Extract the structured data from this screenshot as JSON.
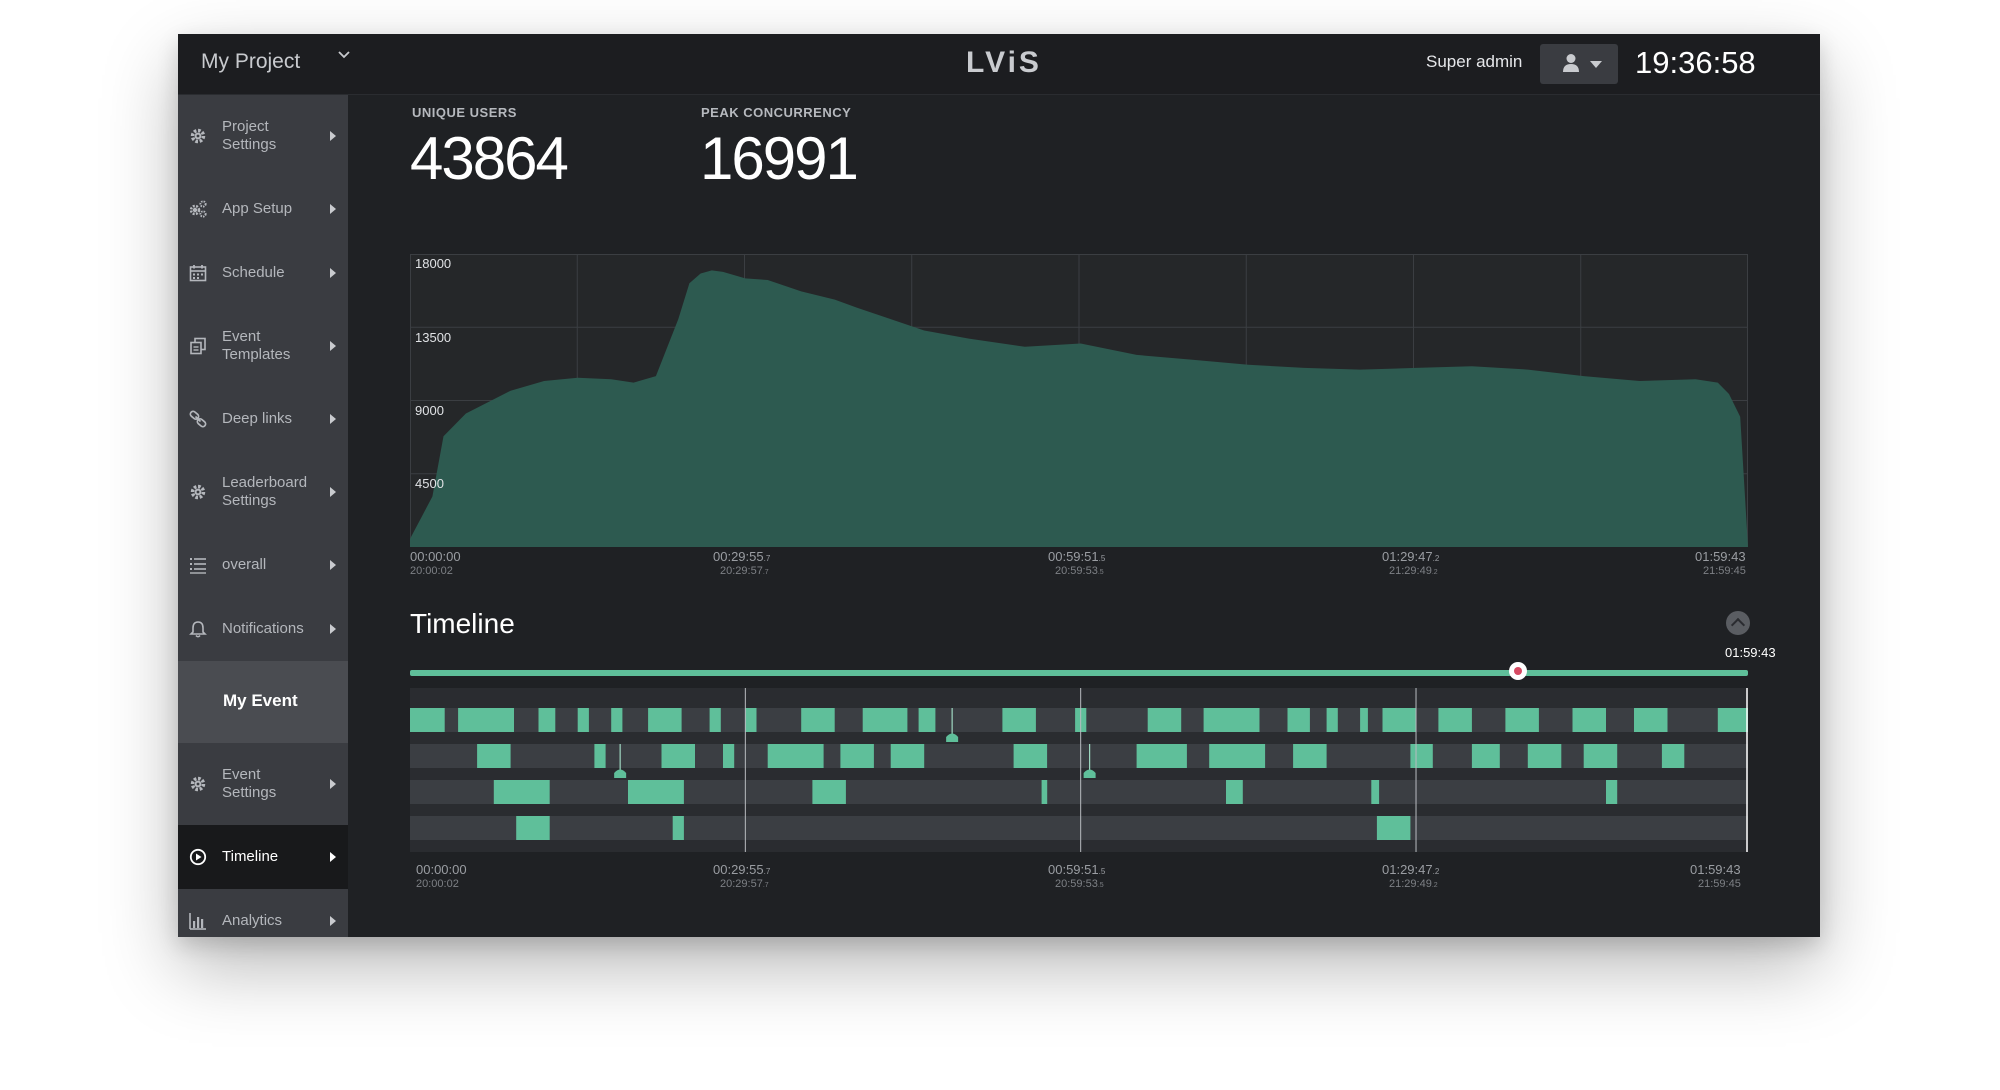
{
  "header": {
    "project": "My Project",
    "logo": "LViS",
    "user_label": "Super admin",
    "clock": "19:36:58",
    "icons": {
      "project_dropdown": "chevron-down-icon",
      "user": "user-icon",
      "user_dropdown": "caret-down-icon"
    }
  },
  "sidebar": {
    "items_top": [
      {
        "label": "Project Settings",
        "icon": "gear-icon"
      },
      {
        "label": "App Setup",
        "icon": "gears-icon"
      },
      {
        "label": "Schedule",
        "icon": "calendar-icon"
      },
      {
        "label": "Event Templates",
        "icon": "templates-icon"
      },
      {
        "label": "Deep links",
        "icon": "link-icon"
      },
      {
        "label": "Leaderboard Settings",
        "icon": "gear-icon"
      },
      {
        "label": "overall",
        "icon": "list-icon"
      },
      {
        "label": "Notifications",
        "icon": "bell-icon"
      }
    ],
    "section": "My Event",
    "items_event": [
      {
        "label": "Event Settings",
        "icon": "gear-icon"
      },
      {
        "label": "Timeline",
        "icon": "play-circle-icon",
        "active": true
      },
      {
        "label": "Analytics",
        "icon": "bar-chart-icon"
      }
    ]
  },
  "stats": {
    "unique_users_label": "UNIQUE USERS",
    "unique_users": "43864",
    "peak_label": "PEAK CONCURRENCY",
    "peak": "16991"
  },
  "chart_data": {
    "type": "area",
    "title": "",
    "xlabel": "",
    "ylabel": "",
    "ylim": [
      0,
      18000
    ],
    "yticks": [
      "18000",
      "13500",
      "9000",
      "4500"
    ],
    "xtick_labels": [
      {
        "main": "00:00:00",
        "main_frac": "",
        "sub": "20:00:02",
        "sub_frac": ""
      },
      {
        "main": "00:29:55",
        "main_frac": ".7",
        "sub": "20:29:57",
        "sub_frac": ".7"
      },
      {
        "main": "00:59:51",
        "main_frac": ".5",
        "sub": "20:59:53",
        "sub_frac": ".5"
      },
      {
        "main": "01:29:47",
        "main_frac": ".2",
        "sub": "21:29:49",
        "sub_frac": ".2"
      },
      {
        "main": "01:59:43",
        "main_frac": "",
        "sub": "21:59:45",
        "sub_frac": ""
      }
    ],
    "grid": true,
    "color": "#2d5a50",
    "x_minutes": [
      0,
      1,
      2,
      3,
      5,
      7,
      9,
      12,
      15,
      18,
      20,
      22,
      24,
      25,
      26,
      27,
      28,
      30,
      32,
      35,
      38,
      40,
      43,
      46,
      50,
      55,
      60,
      65,
      70,
      75,
      80,
      85,
      90,
      95,
      100,
      105,
      110,
      115,
      117,
      118,
      119,
      119.7
    ],
    "values": [
      500,
      1800,
      3100,
      6800,
      8200,
      8900,
      9600,
      10200,
      10400,
      10300,
      10100,
      10500,
      14000,
      16200,
      16800,
      16991,
      16900,
      16500,
      16400,
      15700,
      15200,
      14700,
      14000,
      13300,
      12800,
      12300,
      12500,
      11800,
      11500,
      11200,
      11000,
      10900,
      11000,
      11100,
      10900,
      10500,
      10200,
      10300,
      10100,
      9400,
      8000,
      0
    ]
  },
  "timeline": {
    "title": "Timeline",
    "marker_time": "01:59:43",
    "collapse_icon": "chevron-up-icon",
    "bar_color": "#5fbf9a",
    "duration_minutes": 119.7,
    "minute_lines": [
      30,
      60,
      90
    ],
    "rows": [
      [
        [
          0,
          3.1
        ],
        [
          4.3,
          9.3
        ],
        [
          11.5,
          13
        ],
        [
          15,
          16
        ],
        [
          18,
          19
        ],
        [
          21.3,
          24.3
        ],
        [
          26.8,
          27.8
        ],
        [
          30,
          31
        ],
        [
          35,
          38
        ],
        [
          40.5,
          44.5
        ],
        [
          45.5,
          47
        ],
        [
          53,
          56
        ],
        [
          59.5,
          60.5
        ],
        [
          66,
          69
        ],
        [
          71,
          76
        ],
        [
          78.5,
          80.5
        ],
        [
          82,
          83
        ],
        [
          85,
          85.7
        ],
        [
          87,
          90
        ],
        [
          92,
          95
        ],
        [
          98,
          101
        ],
        [
          104,
          107
        ],
        [
          109.5,
          112.5
        ],
        [
          117,
          119.7
        ]
      ],
      [
        [
          6,
          9
        ],
        [
          16.5,
          17.5
        ],
        [
          22.5,
          25.5
        ],
        [
          28,
          29
        ],
        [
          32,
          37
        ],
        [
          38.5,
          41.5
        ],
        [
          43,
          46
        ],
        [
          54,
          57
        ],
        [
          65,
          69.5
        ],
        [
          71.5,
          76.5
        ],
        [
          79,
          82
        ],
        [
          89.5,
          91.5
        ],
        [
          95,
          97.5
        ],
        [
          100,
          103
        ],
        [
          105,
          108
        ],
        [
          112,
          114
        ]
      ],
      [
        [
          7.5,
          12.5
        ],
        [
          19.5,
          24.5
        ],
        [
          36,
          39
        ],
        [
          56.5,
          57
        ],
        [
          73,
          74.5
        ],
        [
          86,
          86.7
        ],
        [
          107,
          108
        ]
      ],
      [
        [
          9.5,
          12.5
        ],
        [
          23.5,
          24.5
        ],
        [
          86.5,
          89.5
        ]
      ]
    ],
    "markers": [
      {
        "row": 0,
        "minute": 48.5
      },
      {
        "row": 1,
        "minute": 18.8
      },
      {
        "row": 1,
        "minute": 60.8
      }
    ],
    "xtick_labels": [
      {
        "main": "00:00:00",
        "main_frac": "",
        "sub": "20:00:02",
        "sub_frac": ""
      },
      {
        "main": "00:29:55",
        "main_frac": ".7",
        "sub": "20:29:57",
        "sub_frac": ".7"
      },
      {
        "main": "00:59:51",
        "main_frac": ".5",
        "sub": "20:59:53",
        "sub_frac": ".5"
      },
      {
        "main": "01:29:47",
        "main_frac": ".2",
        "sub": "21:29:49",
        "sub_frac": ".2"
      },
      {
        "main": "01:59:43",
        "main_frac": "",
        "sub": "21:59:45",
        "sub_frac": ""
      }
    ]
  }
}
